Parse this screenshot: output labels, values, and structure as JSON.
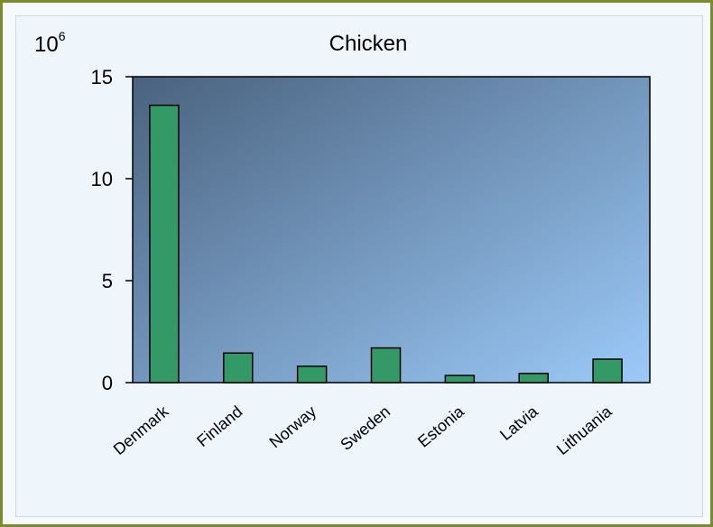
{
  "chart_data": {
    "type": "bar",
    "title": "Chicken",
    "unit_base": "10",
    "unit_exponent": "6",
    "categories": [
      "Denmark",
      "Finland",
      "Norway",
      "Sweden",
      "Estonia",
      "Latvia",
      "Lithuania"
    ],
    "values": [
      13.6,
      1.45,
      0.8,
      1.7,
      0.35,
      0.45,
      1.15
    ],
    "ylim": [
      0,
      15
    ],
    "yticks": [
      0,
      5,
      10,
      15
    ],
    "grid": false,
    "bar_color": "#339966",
    "plot_gradient": [
      "#4a627e",
      "#9ccaf9"
    ]
  }
}
